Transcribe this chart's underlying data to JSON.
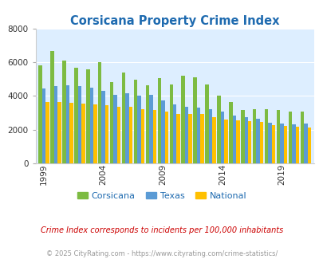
{
  "title": "Corsicana Property Crime Index",
  "subtitle": "Crime Index corresponds to incidents per 100,000 inhabitants",
  "copyright": "© 2025 CityRating.com - https://www.cityrating.com/crime-statistics/",
  "years": [
    1999,
    2000,
    2001,
    2002,
    2003,
    2004,
    2005,
    2006,
    2007,
    2008,
    2009,
    2010,
    2011,
    2012,
    2013,
    2014,
    2015,
    2016,
    2017,
    2018,
    2019,
    2020,
    2021
  ],
  "corsicana": [
    5850,
    6700,
    6100,
    5700,
    5600,
    6000,
    4850,
    5400,
    4950,
    4650,
    5050,
    4700,
    5200,
    5100,
    4700,
    4000,
    3650,
    3150,
    3200,
    3200,
    3150,
    3050,
    3050
  ],
  "texas": [
    4450,
    4600,
    4650,
    4600,
    4500,
    4300,
    4050,
    4150,
    4000,
    4050,
    3750,
    3500,
    3350,
    3300,
    3200,
    3050,
    2850,
    2750,
    2650,
    2400,
    2350,
    2300,
    2350
  ],
  "national": [
    3650,
    3650,
    3600,
    3550,
    3500,
    3450,
    3350,
    3350,
    3200,
    3150,
    3050,
    2950,
    2950,
    2950,
    2750,
    2600,
    2550,
    2500,
    2450,
    2250,
    2200,
    2150,
    2100
  ],
  "corsicana_color": "#7dbb42",
  "texas_color": "#5b9bd5",
  "national_color": "#ffc000",
  "title_color": "#1f6bb0",
  "subtitle_color": "#cc0000",
  "copyright_color": "#999999",
  "bg_color": "#ddeeff",
  "ylim": [
    0,
    8000
  ],
  "yticks": [
    0,
    2000,
    4000,
    6000,
    8000
  ],
  "xtick_years": [
    1999,
    2004,
    2009,
    2014,
    2019
  ]
}
